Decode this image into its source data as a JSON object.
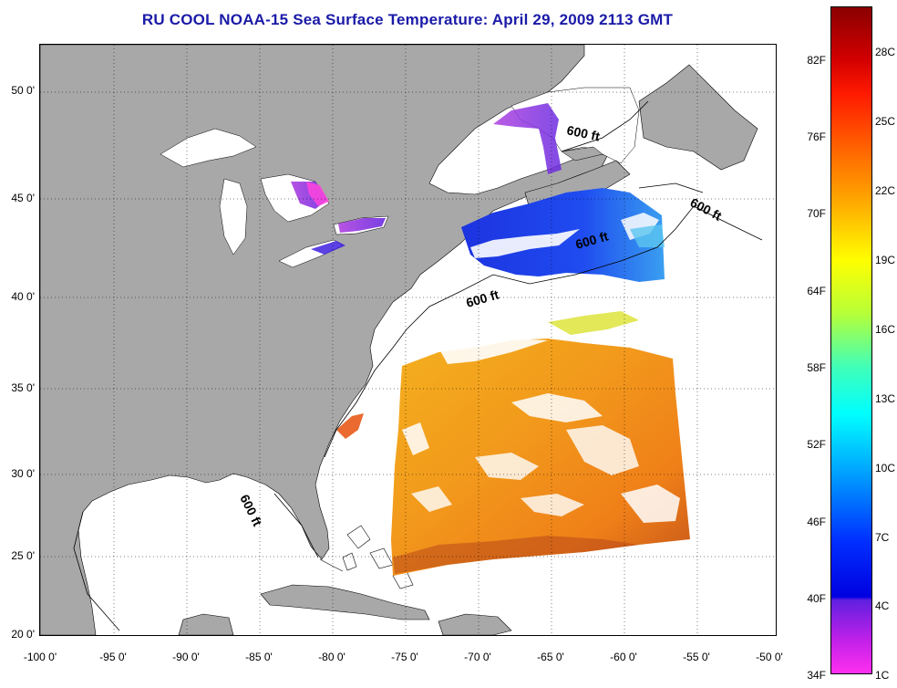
{
  "title": "RU COOL  NOAA-15  Sea Surface Temperature:  April 29, 2009 2113 GMT",
  "axes": {
    "lat_labels": [
      "50 0'",
      "45 0'",
      "40 0'",
      "35 0'",
      "30 0'",
      "25 0'",
      "20 0'"
    ],
    "lon_labels": [
      "-100 0'",
      "-95 0'",
      "-90 0'",
      "-85 0'",
      "-80 0'",
      "-75 0'",
      "-70 0'",
      "-65 0'",
      "-60 0'",
      "-55 0'",
      "-50 0'"
    ]
  },
  "contour_label": "600 ft",
  "colorbar": {
    "fahrenheit": [
      "82F",
      "76F",
      "70F",
      "64F",
      "58F",
      "52F",
      "46F",
      "40F",
      "34F"
    ],
    "celsius": [
      "28C",
      "25C",
      "22C",
      "19C",
      "16C",
      "13C",
      "10C",
      "7C",
      "4C",
      "1C"
    ]
  },
  "colors": {
    "land": "#a8a8a8",
    "title": "#1a1aa8"
  }
}
